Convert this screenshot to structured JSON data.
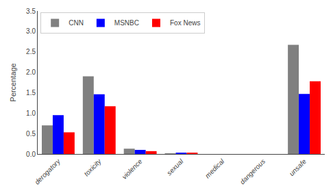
{
  "chart_data": {
    "type": "bar",
    "ylabel": "Percentage",
    "categories": [
      "derogatory",
      "toxicity",
      "violence",
      "sexual",
      "medical",
      "dangerous",
      "unsafe"
    ],
    "series": [
      {
        "name": "CNN",
        "color": "#808080",
        "values": [
          0.7,
          1.9,
          0.13,
          0.01,
          0.0,
          0.0,
          2.67
        ]
      },
      {
        "name": "MSNBC",
        "color": "#0000ff",
        "values": [
          0.95,
          1.46,
          0.1,
          0.03,
          0.0,
          0.0,
          1.47
        ]
      },
      {
        "name": "Fox News",
        "color": "#ff0000",
        "values": [
          0.53,
          1.17,
          0.07,
          0.03,
          0.0,
          0.0,
          1.78
        ]
      }
    ],
    "ylim": [
      0,
      3.5
    ],
    "yticks": [
      {
        "value": 0,
        "label": "0.0"
      },
      0.5,
      {
        "value": 1,
        "label": "1.0"
      },
      1.5,
      {
        "value": 2,
        "label": "2.0"
      },
      2.5,
      {
        "value": 3,
        "label": "3.0"
      },
      3.5
    ],
    "legend": "upper left",
    "grid": false
  }
}
